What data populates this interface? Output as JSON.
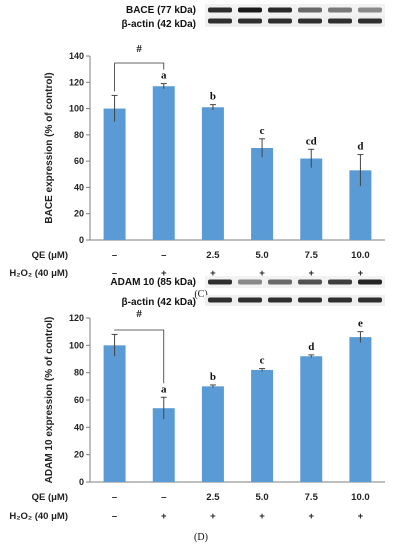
{
  "chart_data": [
    {
      "type": "bar",
      "panel_label": "(C)",
      "blot": {
        "target_label": "BACE  (77 kDa)",
        "control_label": "β-actin (42 kDa)"
      },
      "ylabel": "BACE expression (% of control)",
      "ylim": [
        0,
        140
      ],
      "yticks": [
        0,
        20,
        40,
        60,
        80,
        100,
        120,
        140
      ],
      "values": [
        100,
        117,
        101,
        70,
        62,
        53
      ],
      "errors": [
        10,
        2,
        2,
        7,
        7,
        12
      ],
      "letters": [
        "",
        "a",
        "b",
        "c",
        "cd",
        "d"
      ],
      "hash_label": "#",
      "conditions": {
        "qe_label": "QE (μM)",
        "qe_values": [
          "–",
          "–",
          "2.5",
          "5.0",
          "7.5",
          "10.0"
        ],
        "h2o2_label": "H₂O₂ (40 μM)",
        "h2o2_values": [
          "–",
          "+",
          "+",
          "+",
          "+",
          "+"
        ]
      },
      "bar_color": "#5b9bd5"
    },
    {
      "type": "bar",
      "panel_label": "(D)",
      "blot": {
        "target_label": "ADAM 10  (85 kDa)",
        "control_label": "β-actin (42 kDa)"
      },
      "ylabel": "ADAM 10 expression (% of control)",
      "ylim": [
        0,
        120
      ],
      "yticks": [
        0,
        20,
        40,
        60,
        80,
        100,
        120
      ],
      "values": [
        100,
        54,
        70,
        82,
        92,
        106
      ],
      "errors": [
        8,
        8,
        1,
        1,
        1,
        4
      ],
      "letters": [
        "",
        "a",
        "b",
        "c",
        "d",
        "e"
      ],
      "hash_label": "#",
      "conditions": {
        "qe_label": "QE (μM)",
        "qe_values": [
          "–",
          "–",
          "2.5",
          "5.0",
          "7.5",
          "10.0"
        ],
        "h2o2_label": "H₂O₂ (40 μM)",
        "h2o2_values": [
          "–",
          "+",
          "+",
          "+",
          "+",
          "+"
        ]
      },
      "bar_color": "#5b9bd5"
    }
  ]
}
